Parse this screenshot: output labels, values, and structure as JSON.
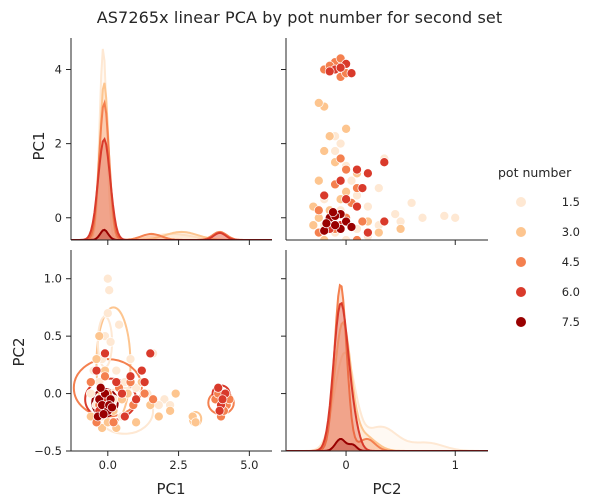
{
  "chart_data": {
    "type": "scatter",
    "kind": "pairplot",
    "title": "AS7265x linear PCA by pot number for second set",
    "variables": [
      "PC1",
      "PC2"
    ],
    "ranges": {
      "PC1": [
        -1.3,
        5.8
      ],
      "PC2": [
        -0.5,
        1.25
      ],
      "PC1_row": [
        -0.6,
        4.85
      ],
      "PC2_col": [
        -0.55,
        1.3
      ]
    },
    "ticks": {
      "PC1_x": [
        "0.0",
        "2.5",
        "5.0"
      ],
      "PC1_x_values": [
        0,
        2.5,
        5
      ],
      "PC2_x": [
        "0",
        "1"
      ],
      "PC2_x_values": [
        0,
        1
      ],
      "PC1_y": [
        "0",
        "2",
        "4"
      ],
      "PC1_y_values": [
        0,
        2,
        4
      ],
      "PC2_y": [
        "−0.5",
        "0.0",
        "0.5",
        "1.0"
      ],
      "PC2_y_values": [
        -0.5,
        0,
        0.5,
        1
      ]
    },
    "xlabels": [
      "PC1",
      "PC2"
    ],
    "ylabels": [
      "PC1",
      "PC2"
    ],
    "legend": {
      "title": "pot number",
      "placement": "right",
      "entries": [
        {
          "label": "1.5",
          "color": "#fee8d3"
        },
        {
          "label": "3.0",
          "color": "#fdc58f"
        },
        {
          "label": "4.5",
          "color": "#f4804f"
        },
        {
          "label": "6.0",
          "color": "#d93a2b"
        },
        {
          "label": "7.5",
          "color": "#990000"
        }
      ]
    },
    "groups": [
      {
        "name": "1.5",
        "color": "#fee8d3",
        "points": [
          [
            -0.3,
            0.1
          ],
          [
            -0.2,
            0.3
          ],
          [
            -0.1,
            0.5
          ],
          [
            0.0,
            0.7
          ],
          [
            0.0,
            1.0
          ],
          [
            0.05,
            0.9
          ],
          [
            -0.4,
            -0.1
          ],
          [
            0.2,
            -0.05
          ],
          [
            0.6,
            0.1
          ],
          [
            1.0,
            0.05
          ],
          [
            1.4,
            0.0
          ],
          [
            2.0,
            -0.05
          ],
          [
            1.8,
            -0.1
          ],
          [
            0.3,
            0.2
          ],
          [
            -0.6,
            0.0
          ],
          [
            0.5,
            -0.2
          ],
          [
            1.2,
            0.2
          ],
          [
            2.2,
            -0.1
          ],
          [
            -0.2,
            -0.2
          ],
          [
            0.8,
            0.3
          ],
          [
            0.1,
            0.45
          ],
          [
            1.6,
            0.35
          ],
          [
            -0.5,
            0.2
          ],
          [
            0.4,
            0.6
          ]
        ]
      },
      {
        "name": "3.0",
        "color": "#fdc58f",
        "points": [
          [
            -0.2,
            -0.3
          ],
          [
            0.0,
            -0.25
          ],
          [
            0.3,
            -0.3
          ],
          [
            1.0,
            -0.25
          ],
          [
            1.8,
            -0.2
          ],
          [
            2.2,
            -0.15
          ],
          [
            1.5,
            -0.1
          ],
          [
            3.0,
            -0.2
          ],
          [
            3.1,
            -0.25
          ],
          [
            0.5,
            -0.05
          ],
          [
            -0.4,
            0.3
          ],
          [
            -0.3,
            0.5
          ],
          [
            -0.1,
            0.2
          ],
          [
            0.7,
            0.0
          ],
          [
            1.2,
            0.1
          ],
          [
            2.4,
            0.0
          ],
          [
            0.2,
            -0.15
          ],
          [
            -0.6,
            -0.2
          ]
        ]
      },
      {
        "name": "4.5",
        "color": "#f4804f",
        "points": [
          [
            -0.3,
            -0.1
          ],
          [
            0.0,
            0.0
          ],
          [
            0.4,
            0.05
          ],
          [
            0.9,
            -0.1
          ],
          [
            1.3,
            0.0
          ],
          [
            -0.6,
            0.1
          ],
          [
            3.8,
            -0.05
          ],
          [
            4.0,
            -0.2
          ],
          [
            4.2,
            -0.1
          ],
          [
            3.9,
            0.0
          ],
          [
            4.1,
            -0.15
          ],
          [
            4.3,
            -0.05
          ],
          [
            0.2,
            -0.25
          ],
          [
            -0.1,
            0.15
          ],
          [
            0.6,
            -0.2
          ],
          [
            1.6,
            -0.05
          ],
          [
            -0.4,
            -0.25
          ],
          [
            0.8,
            0.1
          ]
        ]
      },
      {
        "name": "6.0",
        "color": "#d93a2b",
        "points": [
          [
            -0.2,
            -0.05
          ],
          [
            0.1,
            -0.1
          ],
          [
            0.5,
            0.0
          ],
          [
            0.8,
            0.15
          ],
          [
            1.2,
            0.2
          ],
          [
            1.5,
            0.35
          ],
          [
            1.3,
            0.1
          ],
          [
            -0.4,
            0.2
          ],
          [
            -0.3,
            -0.15
          ],
          [
            0.3,
            0.1
          ],
          [
            3.9,
            0.05
          ],
          [
            4.0,
            -0.1
          ],
          [
            4.15,
            0.0
          ],
          [
            4.05,
            -0.05
          ],
          [
            3.95,
            -0.15
          ],
          [
            0.6,
            -0.2
          ],
          [
            1.0,
            -0.05
          ],
          [
            -0.1,
            0.35
          ]
        ]
      },
      {
        "name": "7.5",
        "color": "#990000",
        "points": [
          [
            -0.3,
            -0.05
          ],
          [
            -0.2,
            -0.1
          ],
          [
            -0.1,
            0.0
          ],
          [
            0.0,
            -0.15
          ],
          [
            0.1,
            -0.05
          ],
          [
            -0.35,
            -0.2
          ],
          [
            0.05,
            -0.1
          ],
          [
            -0.15,
            -0.18
          ],
          [
            -0.25,
            0.05
          ],
          [
            0.15,
            -0.12
          ]
        ]
      }
    ]
  }
}
